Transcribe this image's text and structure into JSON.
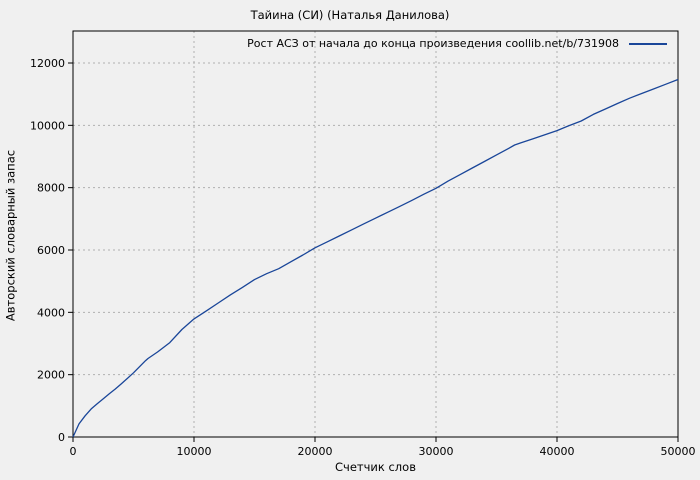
{
  "page": {
    "background": "#f0f0f0",
    "text_color": "#000000"
  },
  "chart_data": {
    "type": "line",
    "title": "Тайина (СИ) (Наталья Данилова)",
    "xlabel": "Счетчик слов",
    "ylabel": "Авторский словарный запас",
    "xlim": [
      0,
      50000
    ],
    "ylim": [
      0,
      13000
    ],
    "x_ticks": [
      0,
      10000,
      20000,
      30000,
      40000,
      50000
    ],
    "y_ticks": [
      0,
      2000,
      4000,
      6000,
      8000,
      10000,
      12000
    ],
    "grid": true,
    "grid_color": "#b0b0b0",
    "frame_color": "#000000",
    "line_color": "#1a4699",
    "legend_position": "top-right-inside",
    "series": [
      {
        "name": "Рост АСЗ от начала до конца произведения coollib.net/b/731908",
        "x": [
          0,
          500,
          1000,
          1500,
          2000,
          2500,
          3000,
          3500,
          4000,
          4500,
          5000,
          6000,
          6200,
          7000,
          8000,
          9000,
          10000,
          11000,
          12000,
          13000,
          14000,
          15000,
          16000,
          17000,
          18000,
          19000,
          20000,
          21000,
          22000,
          23000,
          24000,
          25000,
          26000,
          27000,
          28000,
          29000,
          30000,
          31000,
          32000,
          33000,
          34000,
          35000,
          36000,
          36500,
          37000,
          38000,
          39000,
          40000,
          41000,
          42000,
          43000,
          44000,
          45000,
          46000,
          47000,
          48000,
          49000,
          50000
        ],
        "y": [
          0,
          420,
          680,
          900,
          1070,
          1230,
          1390,
          1540,
          1710,
          1880,
          2060,
          2450,
          2520,
          2730,
          3030,
          3450,
          3790,
          4040,
          4300,
          4560,
          4800,
          5050,
          5240,
          5400,
          5620,
          5840,
          6070,
          6260,
          6450,
          6640,
          6830,
          7020,
          7210,
          7400,
          7590,
          7790,
          7980,
          8210,
          8420,
          8630,
          8840,
          9050,
          9260,
          9370,
          9435,
          9565,
          9700,
          9830,
          9990,
          10140,
          10350,
          10525,
          10700,
          10870,
          11020,
          11170,
          11320,
          11470
        ]
      }
    ]
  }
}
